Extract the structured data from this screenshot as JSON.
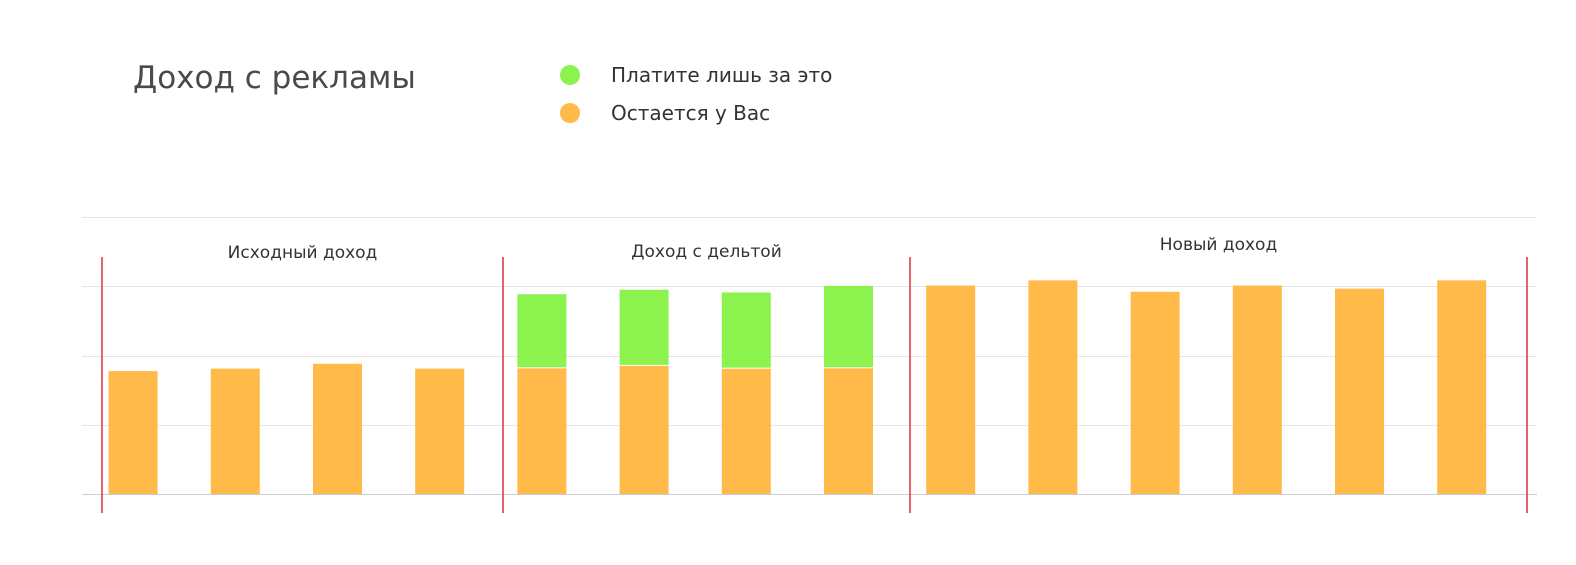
{
  "chart_data": {
    "type": "bar",
    "stacked": true,
    "title": "Доход с рекламы",
    "legend": [
      {
        "label": "Платите лишь за это",
        "color": "#8CF24E"
      },
      {
        "label": "Остается у Вас",
        "color": "#FFBA49"
      }
    ],
    "legend_position": "top",
    "grid": true,
    "groups": [
      {
        "label": "Исходный доход",
        "bars": [
          {
            "base": 3.55,
            "delta": 0
          },
          {
            "base": 3.62,
            "delta": 0
          },
          {
            "base": 3.76,
            "delta": 0
          },
          {
            "base": 3.62,
            "delta": 0
          }
        ]
      },
      {
        "label": "Доход с дельтой",
        "bars": [
          {
            "base": 3.63,
            "delta": 2.14
          },
          {
            "base": 3.7,
            "delta": 2.2
          },
          {
            "base": 3.62,
            "delta": 2.2
          },
          {
            "base": 3.63,
            "delta": 2.38
          }
        ]
      },
      {
        "label": "Новый доход",
        "bars": [
          {
            "base": 6.02,
            "delta": 0
          },
          {
            "base": 6.17,
            "delta": 0
          },
          {
            "base": 5.84,
            "delta": 0
          },
          {
            "base": 6.02,
            "delta": 0
          },
          {
            "base": 5.93,
            "delta": 0
          },
          {
            "base": 6.17,
            "delta": 0
          }
        ]
      }
    ],
    "ylim": [
      0,
      8
    ],
    "y_grid": [
      0,
      2,
      4,
      6,
      8
    ]
  }
}
